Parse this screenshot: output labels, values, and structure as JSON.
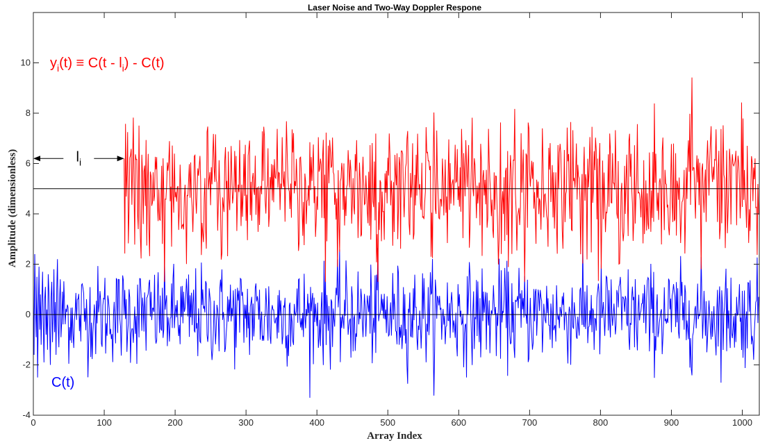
{
  "chart_data": {
    "type": "line",
    "title": "Laser Noise and Two-Way Doppler Respone",
    "xlabel": "Array Index",
    "ylabel": "Amplitude (dimensionless)",
    "xlim": [
      0,
      1024
    ],
    "ylim": [
      -4,
      12
    ],
    "xticks": [
      0,
      100,
      200,
      300,
      400,
      500,
      600,
      700,
      800,
      900,
      1000
    ],
    "yticks": [
      -4,
      -2,
      0,
      2,
      4,
      6,
      8,
      10
    ],
    "grid": false,
    "colors": {
      "c": "#0000ff",
      "y": "#ff0000",
      "axis": "#262626",
      "ref": "#000000"
    },
    "reference_lines": [
      0,
      5
    ],
    "annotations": {
      "y_label_main": "y",
      "y_label_sub": "i",
      "y_label_expr_a": "(t) ≡ C(t - l",
      "y_label_expr_sub": "i",
      "y_label_expr_b": ") - C(t)",
      "c_label": "C(t)",
      "delay_label": "l",
      "delay_sub": "i",
      "delay_from": 0,
      "delay_to": 128,
      "delay_y": 6.2
    },
    "series": [
      {
        "key": "C",
        "color": "#0000ff",
        "x_start": 0,
        "note_noise": "white noise, std ~1, 1024 samples",
        "values": [
          1.2,
          -1.6,
          2.4,
          0.3,
          -0.9,
          1.5,
          -2.5,
          0.1,
          1.9,
          -0.6,
          0.8,
          -1.2,
          0.4,
          1.7,
          -0.3,
          -1.9,
          0.6,
          1.1,
          -0.8,
          0.2,
          -1.4,
          1.6,
          0.9,
          -0.5,
          -2.0,
          0.7,
          1.3,
          -1.1,
          0.0,
          1.8,
          -0.7,
          0.5,
          -1.6,
          1.0,
          2.2,
          -0.4,
          -1.3,
          0.6,
          1.4,
          -0.9
        ]
      },
      {
        "key": "Y",
        "color": "#ff0000",
        "x_start": 128,
        "offset": 5
      }
    ]
  }
}
